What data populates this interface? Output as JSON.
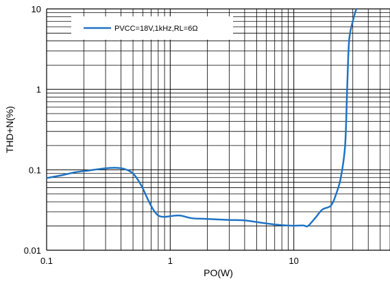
{
  "chart_data": {
    "type": "line",
    "xscale": "log",
    "yscale": "log",
    "xlim": [
      0.1,
      60
    ],
    "ylim": [
      0.01,
      10
    ],
    "grid": true,
    "xlabel": "PO(W)",
    "ylabel": "THD+N(%)",
    "xticks": [
      {
        "value": 0.1,
        "label": "0.1"
      },
      {
        "value": 1,
        "label": "1"
      },
      {
        "value": 10,
        "label": "10"
      }
    ],
    "yticks": [
      {
        "value": 10,
        "label": "10"
      },
      {
        "value": 1,
        "label": "1"
      },
      {
        "value": 0.1,
        "label": "0.1"
      },
      {
        "value": 0.01,
        "label": "0.01"
      }
    ],
    "legend_position": "top-left",
    "line_color": "#1f73c4",
    "series": [
      {
        "name": "PVCC=18V,1kHz,RL=6Ω",
        "x": [
          0.1,
          0.13,
          0.17,
          0.22,
          0.28,
          0.35,
          0.42,
          0.5,
          0.58,
          0.65,
          0.72,
          0.8,
          0.9,
          1.0,
          1.2,
          1.5,
          2.0,
          3.0,
          4.0,
          6.0,
          8.0,
          10.0,
          12.0,
          13.0,
          15.0,
          17.0,
          20.0,
          22.0,
          24.0,
          26.0,
          27.0,
          28.0,
          30.0,
          32.0
        ],
        "y": [
          0.079,
          0.085,
          0.093,
          0.098,
          0.103,
          0.106,
          0.103,
          0.09,
          0.065,
          0.045,
          0.033,
          0.027,
          0.026,
          0.0265,
          0.027,
          0.025,
          0.0245,
          0.0238,
          0.0235,
          0.0215,
          0.0205,
          0.0202,
          0.0203,
          0.02,
          0.0255,
          0.032,
          0.036,
          0.05,
          0.08,
          0.2,
          1.0,
          4.0,
          7.0,
          10.0
        ]
      }
    ]
  }
}
